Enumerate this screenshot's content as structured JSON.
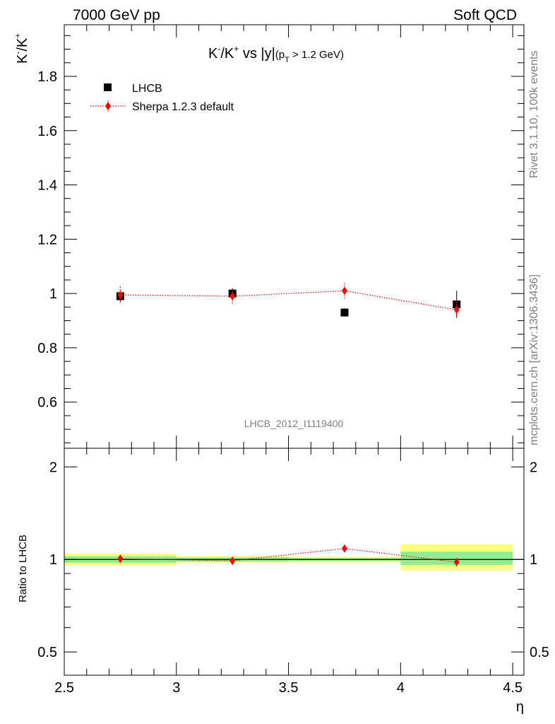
{
  "header": {
    "energy_label": "7000 GeV pp",
    "process_label": "Soft QCD"
  },
  "side_labels": {
    "rivet": "Rivet 3.1.10,  100k events",
    "mcplots": "mcplots.cern.ch [arXiv:1306.3436]"
  },
  "chart_data": [
    {
      "type": "scatter",
      "title_parts": {
        "k": "K",
        "minus": "-",
        "slash": "/K",
        "plus": "+",
        "vs": " vs |y|",
        "paren": "(p",
        "sub": "T",
        "cut": " > 1.2 GeV)"
      },
      "ylabel_parts": {
        "k": "K",
        "minus": "-",
        "slash": "/K",
        "plus": "+"
      },
      "watermark": "LHCB_2012_I1119400",
      "xlim": [
        2.5,
        4.55
      ],
      "ylim": [
        0.43,
        1.99
      ],
      "yticks": [
        0.6,
        0.8,
        1.0,
        1.2,
        1.4,
        1.6,
        1.8
      ],
      "ytick_labels": [
        "0.6",
        "0.8",
        "1",
        "1.2",
        "1.4",
        "1.6",
        "1.8"
      ],
      "legend": {
        "placement": "top-left",
        "entries": [
          "LHCB",
          "Sherpa 1.2.3 default"
        ]
      },
      "series": [
        {
          "name": "LHCB",
          "marker": "square",
          "color": "#000000",
          "x": [
            2.75,
            3.25,
            3.75,
            4.25
          ],
          "xerr": [
            0.25,
            0.25,
            0.25,
            0.25
          ],
          "y": [
            0.99,
            1.0,
            0.93,
            0.96
          ],
          "yerr": [
            0.02,
            0.02,
            0.015,
            0.05
          ]
        },
        {
          "name": "Sherpa 1.2.3 default",
          "marker": "diamond",
          "color": "#ff0000",
          "line": "dotted",
          "x": [
            2.75,
            3.25,
            3.75,
            4.25
          ],
          "y": [
            0.995,
            0.99,
            1.01,
            0.94
          ],
          "yerr": [
            0.03,
            0.03,
            0.03,
            0.03
          ]
        }
      ]
    },
    {
      "type": "scatter",
      "ylabel": "Ratio to LHCB",
      "xlabel": "η",
      "scale": "log",
      "xlim": [
        2.5,
        4.55
      ],
      "ylim": [
        0.42,
        2.3
      ],
      "xticks": [
        2.5,
        3.0,
        3.5,
        4.0,
        4.5
      ],
      "xtick_labels": [
        "2.5",
        "3",
        "3.5",
        "4",
        "4.5"
      ],
      "yticks": [
        0.5,
        1.0,
        2.0
      ],
      "ytick_labels": [
        "0.5",
        "1",
        "2"
      ],
      "bands": [
        {
          "xlo": 2.5,
          "xhi": 3.0,
          "inner": [
            0.975,
            1.025
          ],
          "outer": [
            0.955,
            1.045
          ]
        },
        {
          "xlo": 3.0,
          "xhi": 3.5,
          "inner": [
            0.985,
            1.015
          ],
          "outer": [
            0.975,
            1.025
          ]
        },
        {
          "xlo": 3.5,
          "xhi": 4.0,
          "inner": [
            0.99,
            1.01
          ],
          "outer": [
            0.98,
            1.02
          ]
        },
        {
          "xlo": 4.0,
          "xhi": 4.5,
          "inner": [
            0.96,
            1.06
          ],
          "outer": [
            0.92,
            1.12
          ]
        }
      ],
      "series": [
        {
          "name": "Sherpa 1.2.3 default",
          "color": "#ff0000",
          "x": [
            2.75,
            3.25,
            3.75,
            4.25
          ],
          "y": [
            1.005,
            0.99,
            1.085,
            0.98
          ],
          "yerr": [
            0.03,
            0.03,
            0.03,
            0.03
          ]
        }
      ],
      "colors": {
        "inner_band": "#90ee90",
        "outer_band": "#ffff80",
        "reference": "#000000"
      }
    }
  ]
}
